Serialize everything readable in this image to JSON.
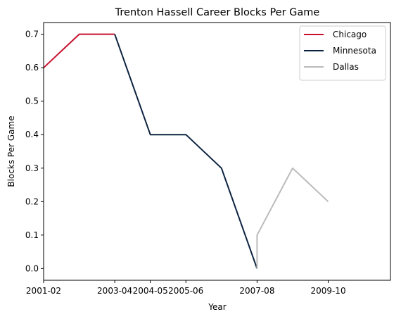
{
  "chart_data": {
    "type": "line",
    "title": "Trenton Hassell Career Blocks Per Game",
    "xlabel": "Year",
    "ylabel": "Blocks Per Game",
    "xticks": [
      "2001-02",
      "2003-04",
      "2004-05",
      "2005-06",
      "2007-08",
      "2009-10"
    ],
    "yticks": [
      "0.0",
      "0.1",
      "0.2",
      "0.3",
      "0.4",
      "0.5",
      "0.6",
      "0.7"
    ],
    "xlim": [
      2001.0,
      2010.75
    ],
    "ylim": [
      -0.035,
      0.735
    ],
    "legend_position": "top-right",
    "grid": false,
    "series": [
      {
        "name": "Chicago",
        "color": "#c8102e",
        "points": [
          {
            "x": 2001.0,
            "y": 0.6
          },
          {
            "x": 2002.0,
            "y": 0.7
          },
          {
            "x": 2003.0,
            "y": 0.7
          }
        ]
      },
      {
        "name": "Minnesota",
        "color": "#0c2340",
        "points": [
          {
            "x": 2003.0,
            "y": 0.7
          },
          {
            "x": 2004.0,
            "y": 0.4
          },
          {
            "x": 2005.0,
            "y": 0.4
          },
          {
            "x": 2006.0,
            "y": 0.3
          },
          {
            "x": 2007.0,
            "y": 0.0
          }
        ]
      },
      {
        "name": "Dallas",
        "color": "#bbbbbb",
        "points": [
          {
            "x": 2007.0,
            "y": 0.0
          },
          {
            "x": 2007.0,
            "y": 0.1
          },
          {
            "x": 2008.0,
            "y": 0.3
          },
          {
            "x": 2009.0,
            "y": 0.2
          }
        ]
      }
    ]
  }
}
